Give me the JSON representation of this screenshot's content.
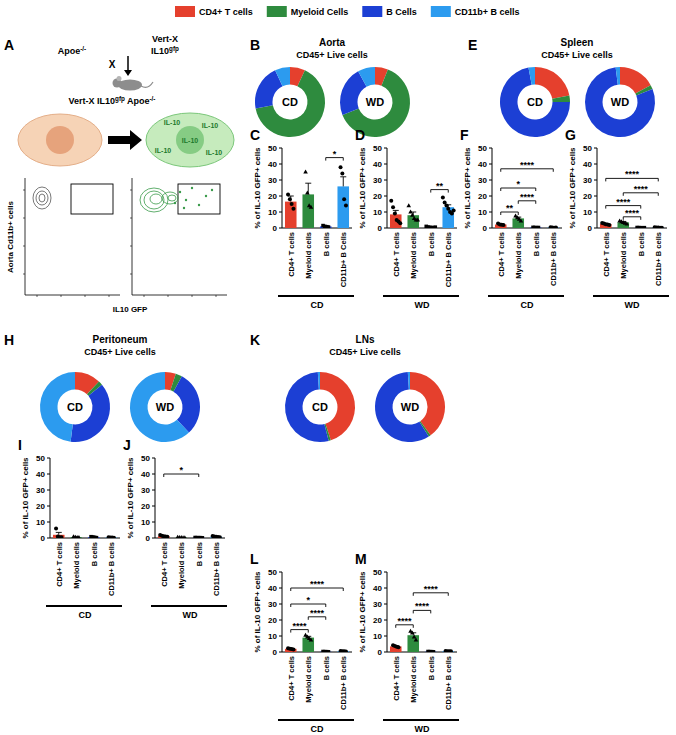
{
  "panel_a": {
    "letter": "A",
    "parent_left": [
      {
        "text": "Apoe"
      },
      {
        "text": "-/-",
        "sup": true
      }
    ],
    "parent_right": [
      [
        {
          "text": "Vert-X"
        }
      ],
      [
        {
          "text": "IL10"
        },
        {
          "text": "gfp",
          "sup": true
        }
      ]
    ],
    "cross": "X",
    "offspring": [
      {
        "text": "Vert-X IL10"
      },
      {
        "text": "gfp",
        "sup": true
      },
      {
        "text": " Apoe"
      },
      {
        "text": "-/-",
        "sup": true
      }
    ],
    "cell_labels": [
      "IL-10",
      "IL-10",
      "IL-10",
      "IL-10",
      "IL-10"
    ],
    "y_label": "Aorta Cd11b+ cells",
    "x_label": "IL10 GFP"
  },
  "chart_data": [
    {
      "type": "donut",
      "panel": "B",
      "title": "Aorta",
      "subtitle": "CD45+ Live cells",
      "legend": "top",
      "categories": [
        "CD4+ T cells",
        "Myeloid Cells",
        "B Cells",
        "CD11b+ B cells"
      ],
      "colors": [
        "#e5402d",
        "#2e8b3e",
        "#1c3fd4",
        "#2c9bef"
      ],
      "series": [
        {
          "name": "CD",
          "values": [
            7,
            65,
            21,
            7
          ]
        },
        {
          "name": "WD",
          "values": [
            6,
            63,
            23,
            8
          ]
        }
      ]
    },
    {
      "type": "bar",
      "panel": "C",
      "categories": [
        "CD4+ T cells",
        "Myeloid cells",
        "B cells",
        "CD11b+ B Cells"
      ],
      "values": [
        16.5,
        21,
        1,
        26
      ],
      "errors": [
        3.5,
        7,
        0.3,
        6
      ],
      "points": [
        [
          21,
          18,
          15,
          12
        ],
        [
          35,
          22,
          14,
          13
        ],
        [
          1.5,
          1,
          0.8,
          0.6
        ],
        [
          38,
          34,
          18,
          14
        ]
      ],
      "colors": [
        "#e5402d",
        "#2e8b3e",
        "#1c3fd4",
        "#2c9bef"
      ],
      "ylim": [
        0,
        50
      ],
      "yticks": [
        0,
        10,
        20,
        30,
        40,
        50
      ],
      "y_label": "% of IL-10 GFP+ cells",
      "x_label": "CD",
      "significance": [
        {
          "from": 2,
          "to": 3,
          "label": "*",
          "y": 44
        }
      ]
    },
    {
      "type": "bar",
      "panel": "D",
      "categories": [
        "CD4+ T cells",
        "Myeloid cells",
        "B cells",
        "CD11b+ B Cells"
      ],
      "values": [
        8.5,
        8,
        0.5,
        13
      ],
      "errors": [
        2.5,
        2,
        0.2,
        1.5
      ],
      "points": [
        [
          17,
          13,
          9,
          5,
          4,
          3
        ],
        [
          14,
          10,
          8,
          6,
          5,
          5
        ],
        [
          1,
          0.6,
          0.4,
          0.3,
          0.2,
          0.5
        ],
        [
          19,
          16,
          14,
          12,
          10,
          9,
          11
        ]
      ],
      "colors": [
        "#e5402d",
        "#2e8b3e",
        "#1c3fd4",
        "#2c9bef"
      ],
      "ylim": [
        0,
        50
      ],
      "yticks": [
        0,
        10,
        20,
        30,
        40,
        50
      ],
      "y_label": "% of IL-10 GFP+ cells",
      "x_label": "WD",
      "significance": [
        {
          "from": 2,
          "to": 3,
          "label": "**",
          "y": 24
        }
      ]
    },
    {
      "type": "donut",
      "panel": "E",
      "title": "Spleen",
      "subtitle": "CD45+ Live cells",
      "colors": [
        "#e5402d",
        "#2e8b3e",
        "#1c3fd4",
        "#2c9bef"
      ],
      "series": [
        {
          "name": "CD",
          "values": [
            22,
            3,
            72,
            3
          ]
        },
        {
          "name": "WD",
          "values": [
            17,
            2,
            79,
            2
          ]
        }
      ]
    },
    {
      "type": "bar",
      "panel": "F",
      "categories": [
        "CD4+ T cells",
        "Myeloid cells",
        "B cells",
        "CD11b+ B cells"
      ],
      "values": [
        2.2,
        6,
        0.3,
        0.3
      ],
      "errors": [
        0.3,
        0.8,
        0.1,
        0.1
      ],
      "points": [
        [
          2.8,
          2.2,
          2,
          1.8
        ],
        [
          7.5,
          6.5,
          5.5,
          4.5
        ],
        [
          0.4,
          0.3,
          0.2,
          0.3
        ],
        [
          0.4,
          0.3,
          0.2,
          0.3
        ]
      ],
      "colors": [
        "#e5402d",
        "#2e8b3e",
        "#1c3fd4",
        "#2c9bef"
      ],
      "ylim": [
        0,
        50
      ],
      "yticks": [
        0,
        10,
        20,
        30,
        40,
        50
      ],
      "y_label": "% of IL-10 GFP+ cells",
      "x_label": "CD",
      "significance": [
        {
          "from": 0,
          "to": 1,
          "label": "**",
          "y": 10
        },
        {
          "from": 1,
          "to": 2,
          "label": "****",
          "y": 17
        },
        {
          "from": 0,
          "to": 2,
          "label": "*",
          "y": 25
        },
        {
          "from": 0,
          "to": 3,
          "label": "****",
          "y": 37
        }
      ]
    },
    {
      "type": "bar",
      "panel": "G",
      "categories": [
        "CD4+ T cells",
        "Myeloid cells",
        "B cells",
        "CD11b+ B cells"
      ],
      "values": [
        2.5,
        3.5,
        0.2,
        0.3
      ],
      "errors": [
        0.3,
        0.6,
        0.05,
        0.1
      ],
      "points": [
        [
          3.2,
          2.8,
          2.4,
          2.2,
          1.9
        ],
        [
          4.5,
          4,
          3.5,
          3,
          2.5
        ],
        [
          0.3,
          0.2,
          0.2,
          0.1,
          0.2
        ],
        [
          0.5,
          0.3,
          0.3,
          0.2,
          0.2
        ]
      ],
      "colors": [
        "#e5402d",
        "#2e8b3e",
        "#1c3fd4",
        "#2c9bef"
      ],
      "ylim": [
        0,
        50
      ],
      "yticks": [
        0,
        10,
        20,
        30,
        40,
        50
      ],
      "y_label": "% of IL-10 GFP+ cells",
      "x_label": "WD",
      "significance": [
        {
          "from": 1,
          "to": 2,
          "label": "****",
          "y": 7
        },
        {
          "from": 0,
          "to": 2,
          "label": "****",
          "y": 14
        },
        {
          "from": 1,
          "to": 3,
          "label": "****",
          "y": 22
        },
        {
          "from": 0,
          "to": 3,
          "label": "****",
          "y": 31
        }
      ]
    },
    {
      "type": "donut",
      "panel": "H",
      "title": "Peritoneum",
      "subtitle": "CD45+ Live cells",
      "colors": [
        "#e5402d",
        "#2e8b3e",
        "#1c3fd4",
        "#2c9bef"
      ],
      "series": [
        {
          "name": "CD",
          "values": [
            12,
            2,
            38,
            48
          ]
        },
        {
          "name": "WD",
          "values": [
            5,
            3,
            30,
            62
          ]
        }
      ]
    },
    {
      "type": "bar",
      "panel": "I",
      "categories": [
        "CD4+ T cells",
        "Myeloid cells",
        "B cells",
        "CD11b+ B cells"
      ],
      "values": [
        2,
        0.5,
        0.5,
        0.3
      ],
      "errors": [
        1.5,
        0.2,
        0.2,
        0.1
      ],
      "points": [
        [
          6,
          1,
          0.5,
          0.5
        ],
        [
          0.9,
          0.5,
          0.3,
          0.3
        ],
        [
          0.8,
          0.6,
          0.4,
          0.2
        ],
        [
          0.4,
          0.3,
          0.3,
          0.2
        ]
      ],
      "colors": [
        "#e5402d",
        "#2e8b3e",
        "#1c3fd4",
        "#2c9bef"
      ],
      "ylim": [
        0,
        50
      ],
      "yticks": [
        0,
        10,
        20,
        30,
        40,
        50
      ],
      "y_label": "% of IL-10 GFP+ cells",
      "x_label": "CD",
      "significance": []
    },
    {
      "type": "bar",
      "panel": "J",
      "categories": [
        "CD4+ T cells",
        "Myeloid cells",
        "B cells",
        "CD11b+ B cells"
      ],
      "values": [
        1.2,
        0.3,
        0.2,
        0.8
      ],
      "errors": [
        0.3,
        0.1,
        0.05,
        0.2
      ],
      "points": [
        [
          1.8,
          1.4,
          1.1,
          0.9,
          0.8
        ],
        [
          0.5,
          0.3,
          0.3,
          0.2,
          0.2
        ],
        [
          0.3,
          0.2,
          0.2,
          0.2,
          0.1
        ],
        [
          1.2,
          1,
          0.8,
          0.6,
          0.4
        ]
      ],
      "colors": [
        "#e5402d",
        "#2e8b3e",
        "#1c3fd4",
        "#2c9bef"
      ],
      "ylim": [
        0,
        50
      ],
      "yticks": [
        0,
        10,
        20,
        30,
        40,
        50
      ],
      "y_label": "% of IL-10 GFP+ cells",
      "x_label": "WD",
      "significance": [
        {
          "from": 0,
          "to": 2,
          "label": "*",
          "y": 40
        }
      ]
    },
    {
      "type": "donut",
      "panel": "K",
      "title": "LNs",
      "subtitle": "CD45+ Live cells",
      "colors": [
        "#e5402d",
        "#2e8b3e",
        "#1c3fd4",
        "#2c9bef"
      ],
      "series": [
        {
          "name": "CD",
          "values": [
            45,
            1,
            53,
            1
          ]
        },
        {
          "name": "WD",
          "values": [
            40,
            1,
            58,
            1
          ]
        }
      ]
    },
    {
      "type": "bar",
      "panel": "L",
      "categories": [
        "CD4+ T cells",
        "Myeloid cells",
        "B cells",
        "CD11b+ B cells"
      ],
      "values": [
        2,
        9,
        0.2,
        0.5
      ],
      "errors": [
        0.2,
        0.8,
        0.05,
        0.1
      ],
      "points": [
        [
          2.4,
          2.1,
          1.9,
          1.6
        ],
        [
          10.5,
          9.5,
          8.5,
          7.5
        ],
        [
          0.3,
          0.2,
          0.2,
          0.1
        ],
        [
          0.7,
          0.5,
          0.5,
          0.3
        ]
      ],
      "colors": [
        "#e5402d",
        "#2e8b3e",
        "#1c3fd4",
        "#2c9bef"
      ],
      "ylim": [
        0,
        50
      ],
      "yticks": [
        0,
        10,
        20,
        30,
        40,
        50
      ],
      "y_label": "% of IL-10 GFP+ cells",
      "x_label": "CD",
      "significance": [
        {
          "from": 0,
          "to": 1,
          "label": "****",
          "y": 14
        },
        {
          "from": 1,
          "to": 2,
          "label": "****",
          "y": 22
        },
        {
          "from": 0,
          "to": 2,
          "label": "*",
          "y": 30
        },
        {
          "from": 0,
          "to": 3,
          "label": "****",
          "y": 40
        }
      ]
    },
    {
      "type": "bar",
      "panel": "M",
      "categories": [
        "CD4+ T cells",
        "Myeloid cells",
        "B cells",
        "CD11b+ B cells"
      ],
      "values": [
        3.5,
        10.5,
        0.2,
        0.5
      ],
      "errors": [
        0.4,
        1.5,
        0.05,
        0.1
      ],
      "points": [
        [
          4.2,
          3.8,
          3.3,
          2.9
        ],
        [
          13,
          12,
          9.5,
          7.5
        ],
        [
          0.3,
          0.2,
          0.2,
          0.1
        ],
        [
          0.7,
          0.5,
          0.4,
          0.4
        ]
      ],
      "colors": [
        "#e5402d",
        "#2e8b3e",
        "#1c3fd4",
        "#2c9bef"
      ],
      "ylim": [
        0,
        50
      ],
      "yticks": [
        0,
        10,
        20,
        30,
        40,
        50
      ],
      "y_label": "% of IL-10 GFP+ cells",
      "x_label": "WD",
      "significance": [
        {
          "from": 0,
          "to": 1,
          "label": "****",
          "y": 17
        },
        {
          "from": 1,
          "to": 2,
          "label": "****",
          "y": 26
        },
        {
          "from": 1,
          "to": 3,
          "label": "****",
          "y": 37
        }
      ]
    }
  ]
}
